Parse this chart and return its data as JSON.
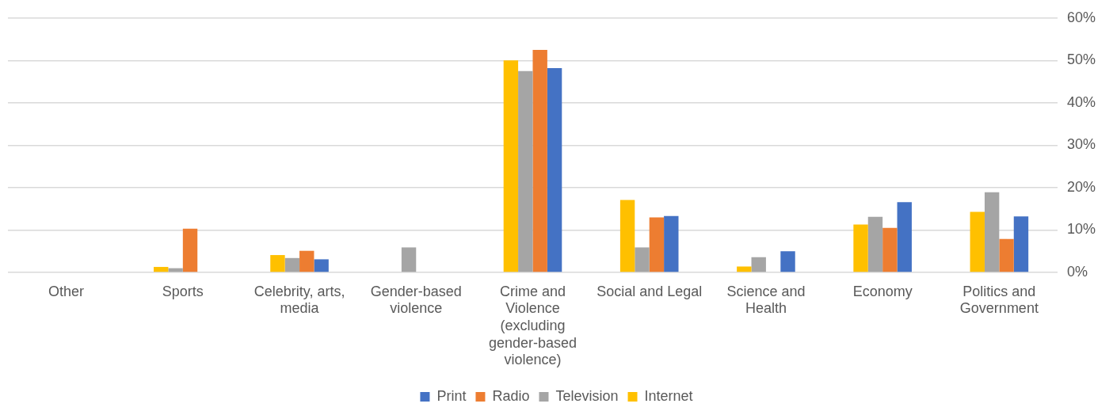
{
  "chart_data": {
    "type": "bar",
    "categories": [
      "Other",
      "Sports",
      "Celebrity, arts, media",
      "Gender-based violence",
      "Crime and Violence (excluding gender-based violence)",
      "Social and Legal",
      "Science and Health",
      "Economy",
      "Politics and Government"
    ],
    "series": [
      {
        "name": "Internet",
        "color": "#ffc000",
        "values": [
          0,
          1.3,
          4.1,
          0,
          50.0,
          17.1,
          1.4,
          11.3,
          14.3
        ]
      },
      {
        "name": "Television",
        "color": "#a5a5a5",
        "values": [
          0,
          1.0,
          3.4,
          5.9,
          47.5,
          5.9,
          3.6,
          13.1,
          18.9
        ]
      },
      {
        "name": "Radio",
        "color": "#ed7d31",
        "values": [
          0,
          10.3,
          5.1,
          0,
          52.5,
          13.0,
          0,
          10.5,
          7.9
        ]
      },
      {
        "name": "Print",
        "color": "#4472c4",
        "values": [
          0,
          0,
          3.1,
          0,
          48.2,
          13.3,
          5.0,
          16.6,
          13.2
        ]
      }
    ],
    "ylim": [
      0,
      60
    ],
    "yticks": [
      {
        "value": 0,
        "label": "0%"
      },
      {
        "value": 10,
        "label": "10%"
      },
      {
        "value": 20,
        "label": "20%"
      },
      {
        "value": 30,
        "label": "30%"
      },
      {
        "value": 40,
        "label": "40%"
      },
      {
        "value": 50,
        "label": "50%"
      },
      {
        "value": 60,
        "label": "60%"
      }
    ],
    "grid": "y",
    "legend": "bottom"
  }
}
